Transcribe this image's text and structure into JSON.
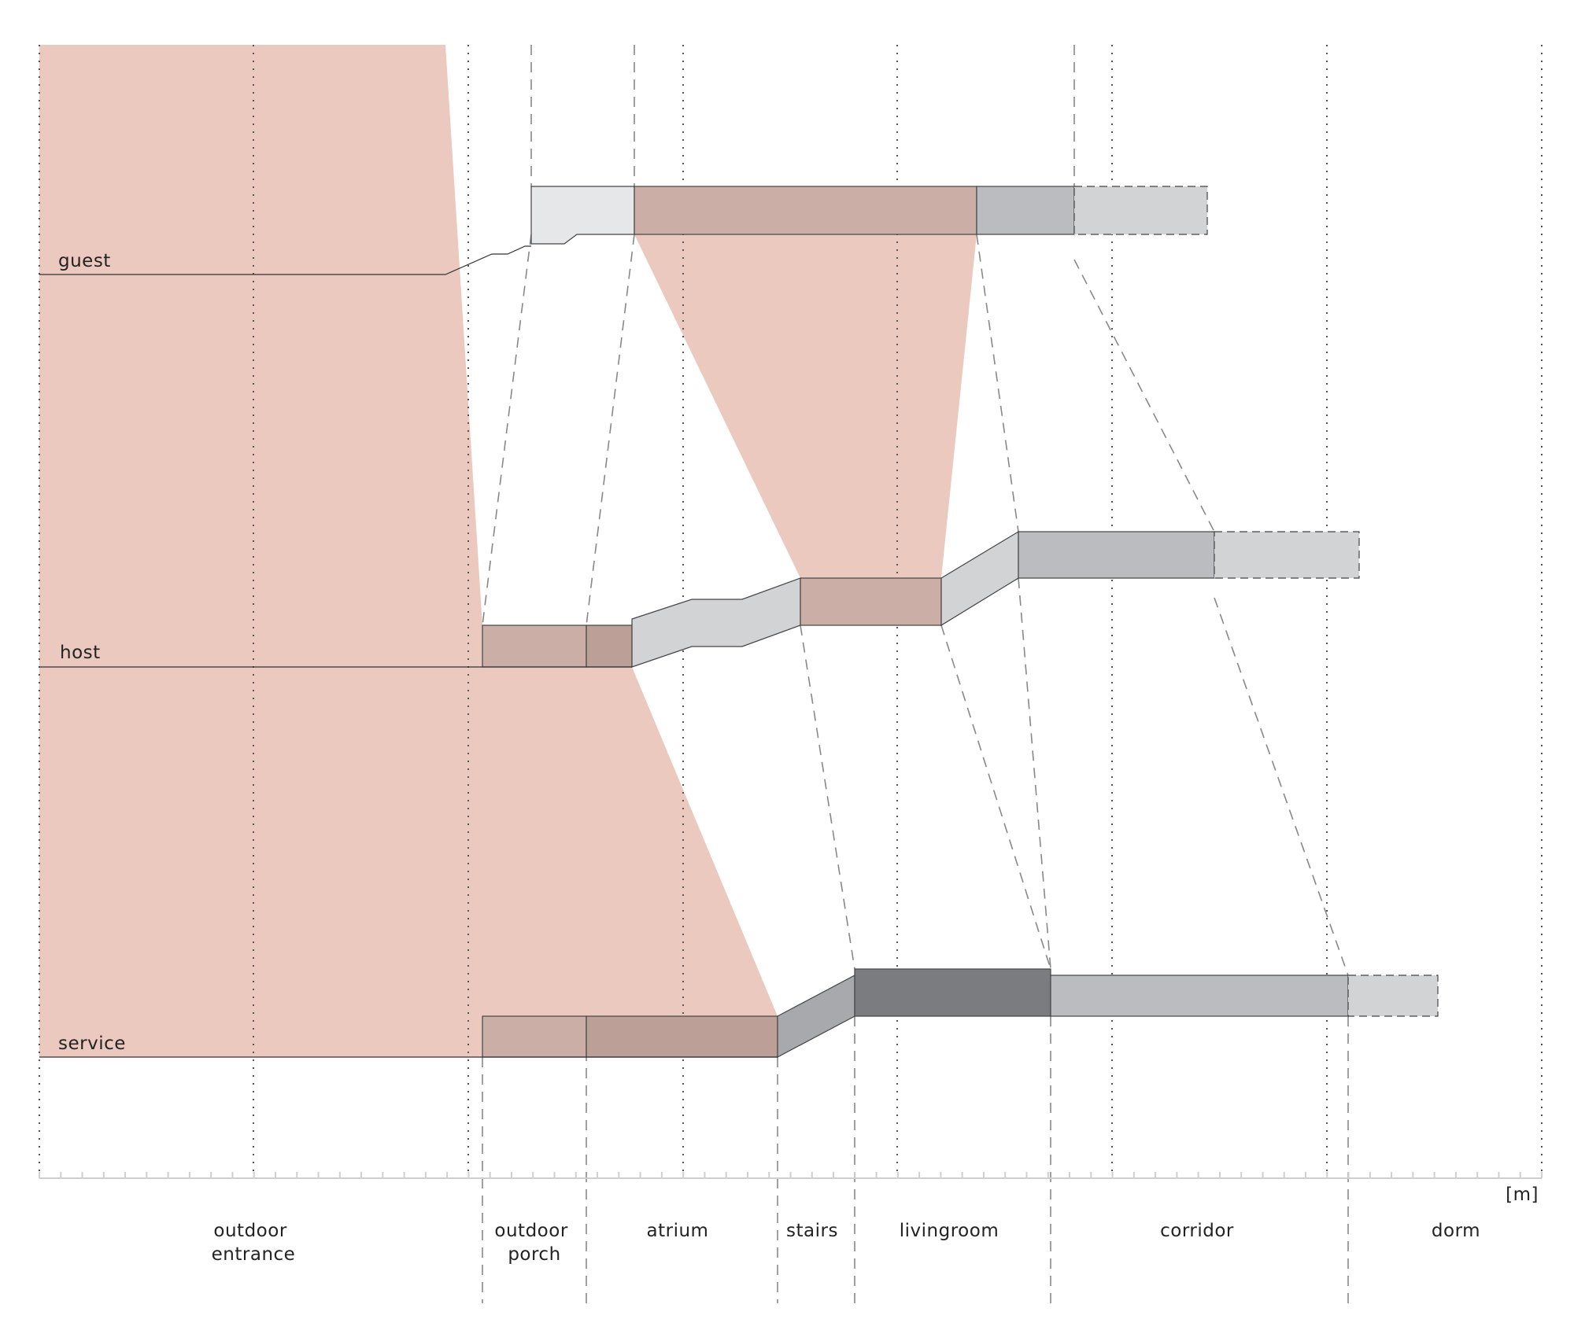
{
  "colors": {
    "pink": "#ecc9bf",
    "pink_dark": "#cbaea5",
    "pink_darker": "#bc9f97",
    "grey_light": "#e6e7e9",
    "grey_mid": "#d1d3d5",
    "grey": "#bbbcbf",
    "grey_stairs": "#a7a9ac",
    "grey_dark": "#7b7c80",
    "line": "#444444"
  },
  "levels": [
    {
      "key": "guest",
      "label": "guest"
    },
    {
      "key": "host",
      "label": "host"
    },
    {
      "key": "service",
      "label": "service"
    }
  ],
  "unit": "[m]",
  "zones": [
    {
      "lines": [
        "outdoor",
        "entrance"
      ]
    },
    {
      "lines": [
        "outdoor",
        "porch"
      ]
    },
    {
      "lines": [
        "atrium"
      ]
    },
    {
      "lines": [
        "stairs"
      ]
    },
    {
      "lines": [
        "livingroom"
      ]
    },
    {
      "lines": [
        "corridor"
      ]
    },
    {
      "lines": [
        "dorm"
      ]
    }
  ]
}
